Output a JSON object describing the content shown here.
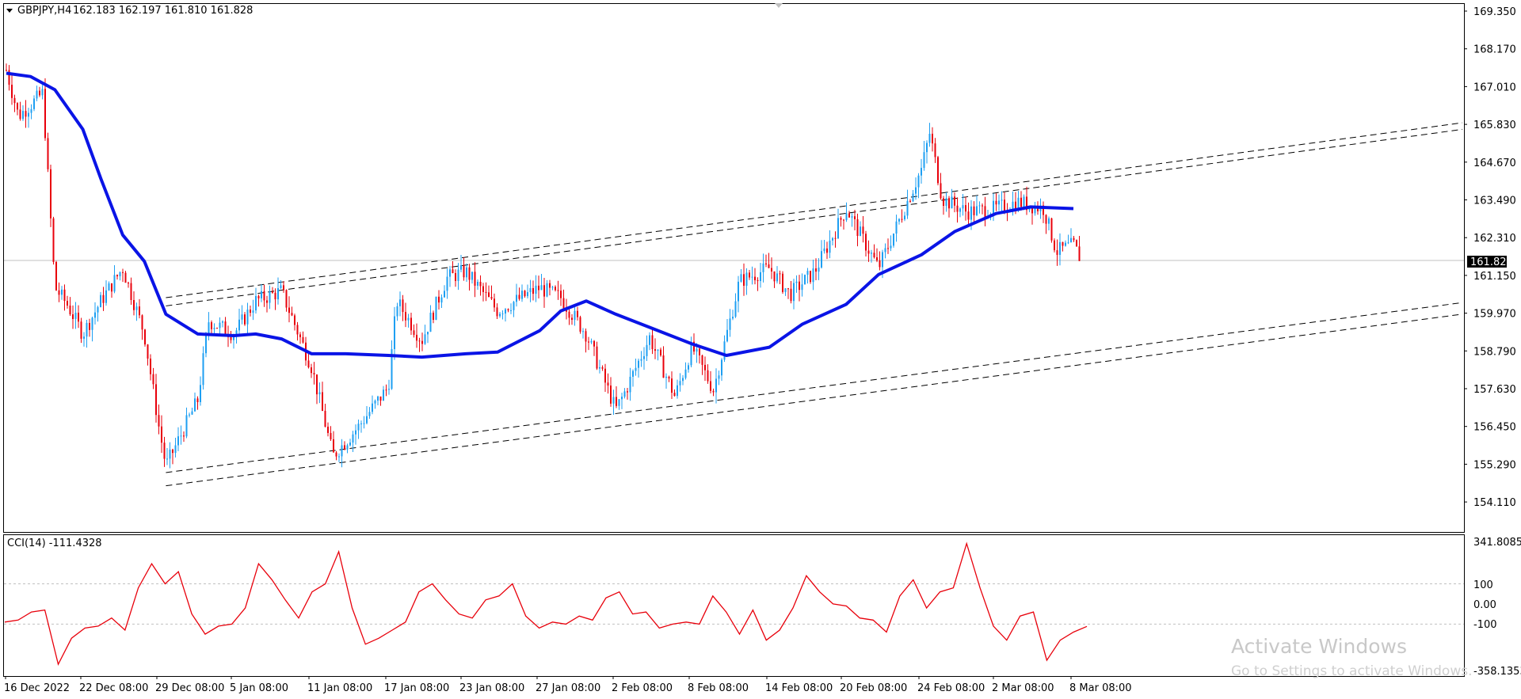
{
  "header": {
    "symbol": "GBPJPY,H4",
    "ohlc": "162.183 162.197 161.810 161.828"
  },
  "indicator_header": {
    "label": "CCI(14) -111.4328"
  },
  "current_price_label": "161.828",
  "price_axis_labels": [
    "169.350",
    "168.170",
    "167.010",
    "165.830",
    "164.670",
    "163.490",
    "162.310",
    "161.150",
    "159.970",
    "158.790",
    "157.630",
    "156.450",
    "155.290",
    "154.110"
  ],
  "cci_axis_labels": [
    "341.8085",
    "100",
    "0.00",
    "-100",
    "-358.1353"
  ],
  "time_axis_labels": [
    "16 Dec 2022",
    "22 Dec 08:00",
    "29 Dec 08:00",
    "5 Jan 08:00",
    "11 Jan 08:00",
    "17 Jan 08:00",
    "23 Jan 08:00",
    "27 Jan 08:00",
    "2 Feb 08:00",
    "8 Feb 08:00",
    "14 Feb 08:00",
    "20 Feb 08:00",
    "24 Feb 08:00",
    "2 Mar 08:00",
    "8 Mar 08:00"
  ],
  "watermark": {
    "line1": "Activate Windows",
    "line2": "Go to Settings to activate Windows."
  },
  "colors": {
    "bull": "#1e9ff2",
    "bear": "#e8000b",
    "ma": "#0a14e6",
    "cci": "#e8000b",
    "channel": "#000000",
    "grid": "#c0c0c0"
  },
  "chart_data": [
    {
      "type": "candlestick",
      "symbol": "GBPJPY",
      "timeframe": "H4",
      "ylim": [
        153.6,
        169.6
      ],
      "last_price": 161.828,
      "moving_average": [
        {
          "x": "16 Dec 2022",
          "y": 167.5
        },
        {
          "x": "18 Dec",
          "y": 167.4
        },
        {
          "x": "20 Dec",
          "y": 167.0
        },
        {
          "x": "22 Dec 08:00",
          "y": 165.8
        },
        {
          "x": "24 Dec",
          "y": 164.3
        },
        {
          "x": "26 Dec",
          "y": 162.6
        },
        {
          "x": "28 Dec",
          "y": 161.8
        },
        {
          "x": "30 Dec",
          "y": 160.2
        },
        {
          "x": "2 Jan",
          "y": 159.6
        },
        {
          "x": "5 Jan 08:00",
          "y": 159.55
        },
        {
          "x": "7 Jan",
          "y": 159.6
        },
        {
          "x": "9 Jan",
          "y": 159.45
        },
        {
          "x": "11 Jan 08:00",
          "y": 159.0
        },
        {
          "x": "14 Jan",
          "y": 159.0
        },
        {
          "x": "17 Jan 08:00",
          "y": 158.95
        },
        {
          "x": "20 Jan",
          "y": 158.9
        },
        {
          "x": "23 Jan 08:00",
          "y": 159.0
        },
        {
          "x": "25 Jan",
          "y": 159.05
        },
        {
          "x": "27 Jan 08:00",
          "y": 159.7
        },
        {
          "x": "29 Jan",
          "y": 160.3
        },
        {
          "x": "31 Jan",
          "y": 160.6
        },
        {
          "x": "2 Feb 08:00",
          "y": 160.2
        },
        {
          "x": "5 Feb",
          "y": 159.8
        },
        {
          "x": "8 Feb 08:00",
          "y": 159.3
        },
        {
          "x": "11 Feb",
          "y": 158.95
        },
        {
          "x": "14 Feb 08:00",
          "y": 159.2
        },
        {
          "x": "17 Feb",
          "y": 159.9
        },
        {
          "x": "20 Feb 08:00",
          "y": 160.5
        },
        {
          "x": "22 Feb",
          "y": 161.4
        },
        {
          "x": "24 Feb 08:00",
          "y": 162.0
        },
        {
          "x": "27 Feb",
          "y": 162.7
        },
        {
          "x": "2 Mar 08:00",
          "y": 163.25
        },
        {
          "x": "5 Mar",
          "y": 163.45
        },
        {
          "x": "8 Mar 08:00",
          "y": 163.4
        }
      ],
      "price_path": [
        {
          "x": "16 Dec 2022",
          "y": 167.6
        },
        {
          "x": "17 Dec",
          "y": 166.2
        },
        {
          "x": "19 Dec",
          "y": 166.9
        },
        {
          "x": "20 Dec",
          "y": 161.0
        },
        {
          "x": "21 Dec",
          "y": 160.5
        },
        {
          "x": "22 Dec 08:00",
          "y": 159.6
        },
        {
          "x": "24 Dec",
          "y": 160.6
        },
        {
          "x": "26 Dec",
          "y": 161.6
        },
        {
          "x": "28 Dec",
          "y": 159.6
        },
        {
          "x": "29 Dec 08:00",
          "y": 156.8
        },
        {
          "x": "30 Dec",
          "y": 155.6
        },
        {
          "x": "2 Jan",
          "y": 157.6
        },
        {
          "x": "3 Jan",
          "y": 160.0
        },
        {
          "x": "5 Jan 08:00",
          "y": 159.6
        },
        {
          "x": "7 Jan",
          "y": 160.6
        },
        {
          "x": "9 Jan",
          "y": 160.9
        },
        {
          "x": "11 Jan 08:00",
          "y": 158.6
        },
        {
          "x": "13 Jan",
          "y": 155.9
        },
        {
          "x": "15 Jan",
          "y": 156.8
        },
        {
          "x": "17 Jan 08:00",
          "y": 158.0
        },
        {
          "x": "18 Jan",
          "y": 160.6
        },
        {
          "x": "20 Jan",
          "y": 159.4
        },
        {
          "x": "22 Jan",
          "y": 161.3
        },
        {
          "x": "23 Jan 08:00",
          "y": 161.5
        },
        {
          "x": "25 Jan",
          "y": 160.3
        },
        {
          "x": "27 Jan 08:00",
          "y": 161.0
        },
        {
          "x": "29 Jan",
          "y": 160.7
        },
        {
          "x": "31 Jan",
          "y": 159.6
        },
        {
          "x": "2 Feb 08:00",
          "y": 157.3
        },
        {
          "x": "3 Feb",
          "y": 157.8
        },
        {
          "x": "5 Feb",
          "y": 159.5
        },
        {
          "x": "7 Feb",
          "y": 157.7
        },
        {
          "x": "8 Feb 08:00",
          "y": 159.2
        },
        {
          "x": "10 Feb",
          "y": 157.9
        },
        {
          "x": "12 Feb",
          "y": 161.2
        },
        {
          "x": "14 Feb 08:00",
          "y": 161.6
        },
        {
          "x": "16 Feb",
          "y": 160.8
        },
        {
          "x": "18 Feb",
          "y": 161.5
        },
        {
          "x": "20 Feb 08:00",
          "y": 163.4
        },
        {
          "x": "22 Feb",
          "y": 161.6
        },
        {
          "x": "24 Feb 08:00",
          "y": 164.6
        },
        {
          "x": "25 Feb",
          "y": 165.7
        },
        {
          "x": "26 Feb",
          "y": 163.7
        },
        {
          "x": "28 Feb",
          "y": 163.3
        },
        {
          "x": "2 Mar 08:00",
          "y": 163.4
        },
        {
          "x": "4 Mar",
          "y": 163.6
        },
        {
          "x": "6 Mar",
          "y": 163.4
        },
        {
          "x": "7 Mar",
          "y": 162.1
        },
        {
          "x": "8 Mar 08:00",
          "y": 162.3
        },
        {
          "x": "9 Mar",
          "y": 161.83
        }
      ],
      "channel_lines": [
        {
          "from": {
            "x": "30 Dec",
            "y": 160.7
          },
          "to": {
            "x": "9 Mar",
            "y": 166.0
          }
        },
        {
          "from": {
            "x": "30 Dec",
            "y": 160.45
          },
          "to": {
            "x": "9 Mar",
            "y": 165.8
          }
        },
        {
          "from": {
            "x": "30 Dec",
            "y": 155.4
          },
          "to": {
            "x": "9 Mar",
            "y": 160.55
          }
        },
        {
          "from": {
            "x": "30 Dec",
            "y": 155.0
          },
          "to": {
            "x": "9 Mar",
            "y": 160.2
          }
        }
      ]
    },
    {
      "type": "line",
      "name": "CCI(14)",
      "ylim": [
        -358.1353,
        341.8085
      ],
      "levels": [
        100,
        -100
      ],
      "last_value": -111.4328,
      "values": [
        -90,
        -80,
        -40,
        -30,
        -300,
        -170,
        -120,
        -110,
        -70,
        -130,
        80,
        200,
        100,
        160,
        -50,
        -150,
        -110,
        -100,
        -20,
        200,
        120,
        20,
        -70,
        60,
        100,
        260,
        -20,
        -200,
        -170,
        -130,
        -90,
        60,
        100,
        20,
        -50,
        -70,
        20,
        40,
        100,
        -60,
        -120,
        -90,
        -100,
        -60,
        -80,
        30,
        60,
        -50,
        -40,
        -120,
        -100,
        -90,
        -100,
        40,
        -40,
        -150,
        -30,
        -180,
        -130,
        -20,
        140,
        60,
        0,
        -10,
        -70,
        -80,
        -140,
        40,
        120,
        -20,
        60,
        80,
        300,
        80,
        -110,
        -180,
        -60,
        -40,
        -280,
        -180,
        -140,
        -111.43
      ]
    }
  ]
}
